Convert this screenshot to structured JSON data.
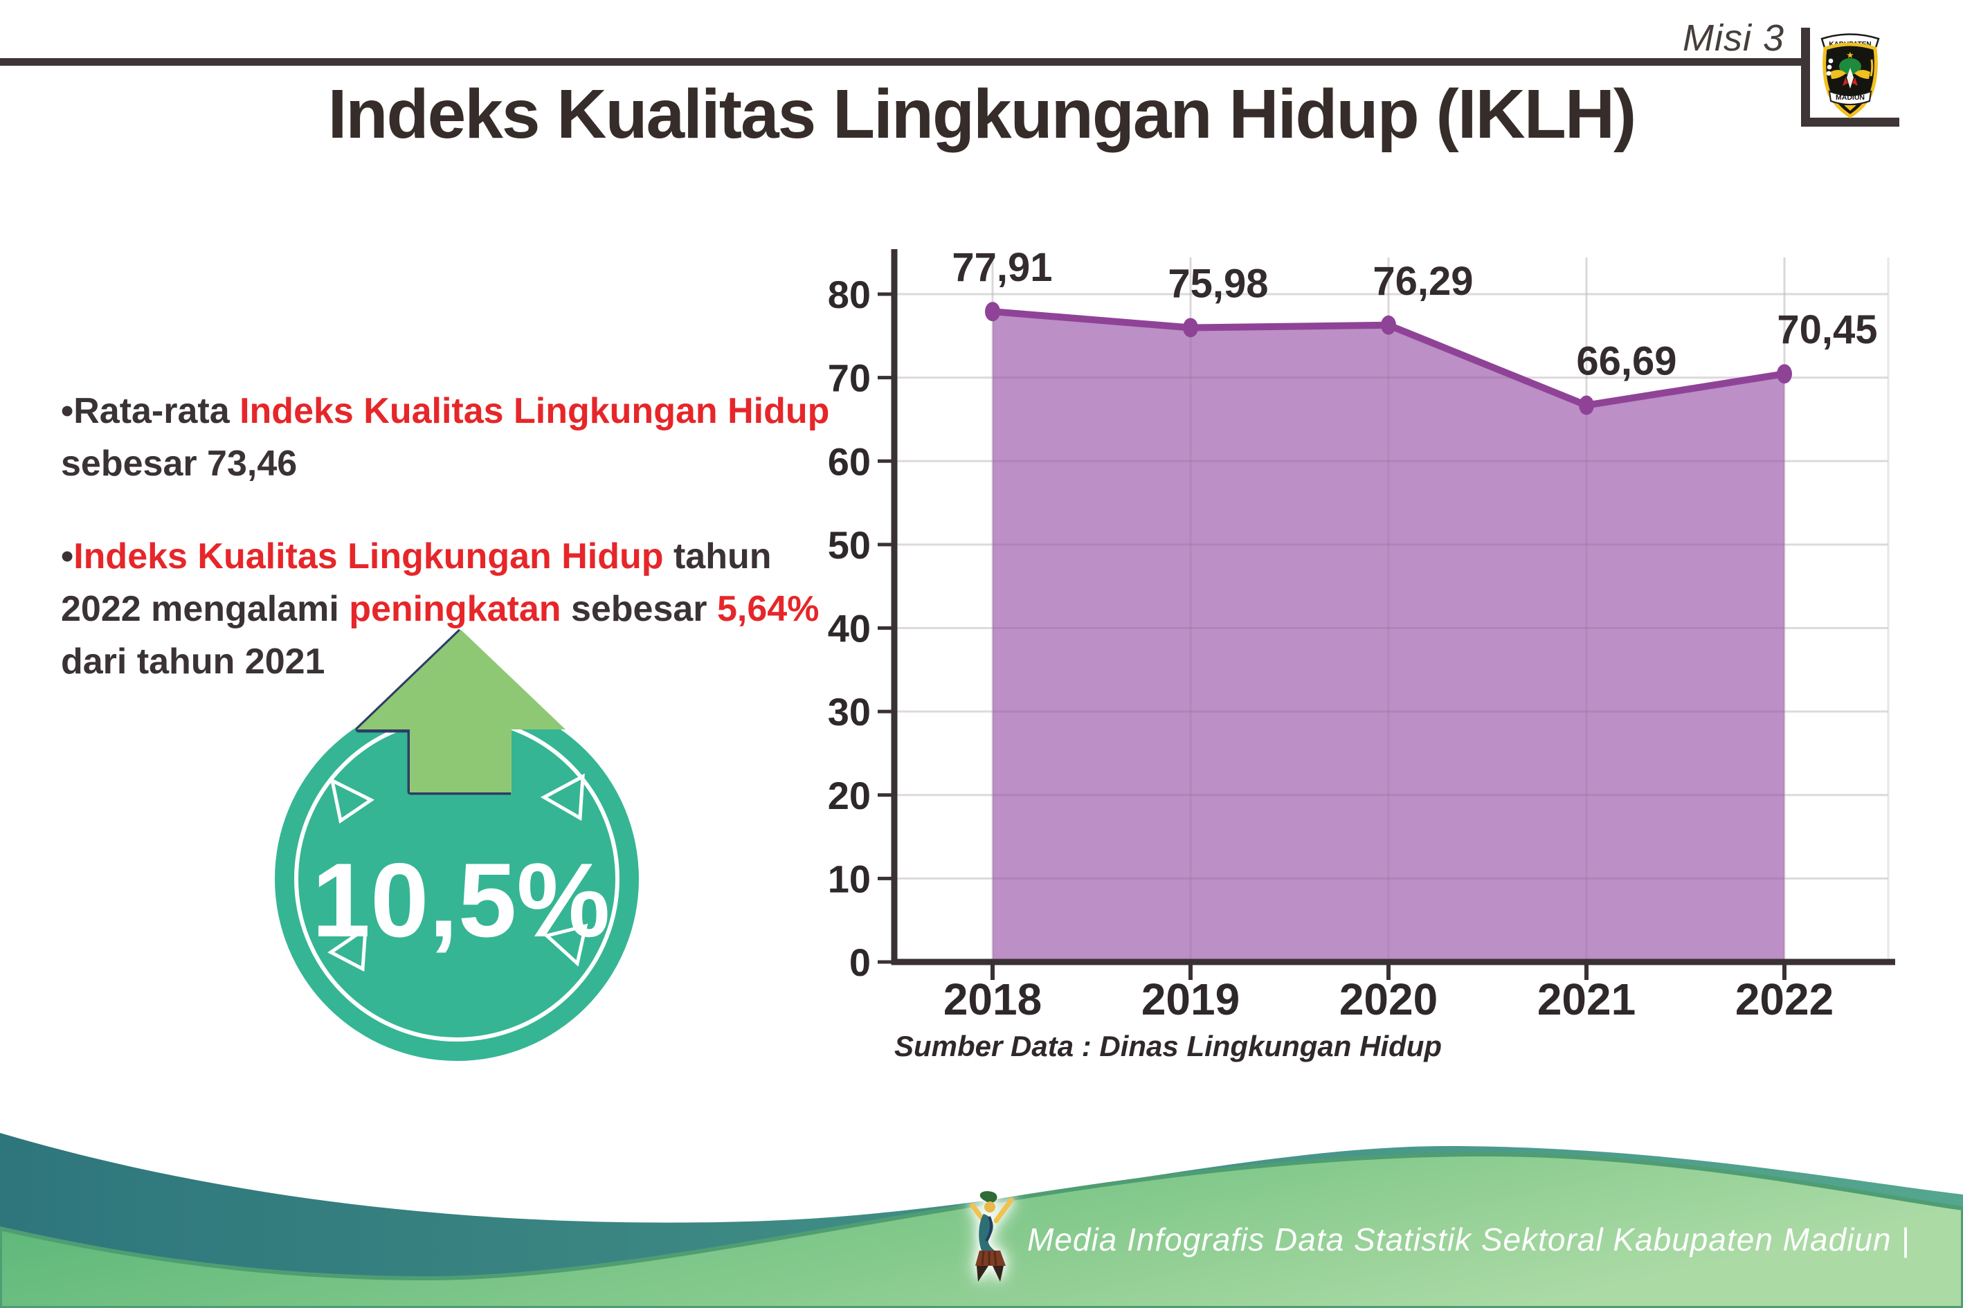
{
  "header": {
    "mission_label": "Misi 3",
    "title": "Indeks Kualitas Lingkungan Hidup (IKLH)",
    "logo": {
      "top_text": "KABUPATEN",
      "bottom_text": "MADIUN"
    }
  },
  "bullets": {
    "marker": "•",
    "b1": {
      "s1": "Rata-rata ",
      "s2": "Indeks Kualitas Lingkungan Hidup",
      "s3": " sebesar 73,46"
    },
    "b2": {
      "s1": "Indeks Kualitas Lingkungan Hidup",
      "s2": " tahun 2022 mengalami ",
      "s3": "peningkatan",
      "s4": " sebesar ",
      "s5": "5,64%",
      "s6": " dari tahun 2021"
    }
  },
  "badge": {
    "value": "10,5%"
  },
  "chart_data": {
    "type": "area",
    "categories": [
      "2018",
      "2019",
      "2020",
      "2021",
      "2022"
    ],
    "values": [
      77.91,
      75.98,
      76.29,
      66.69,
      70.45
    ],
    "point_labels": [
      "77,91",
      "75,98",
      "76,29",
      "66,69",
      "70,45"
    ],
    "title": "Indeks Kualitas Lingkungan Hidup (IKLH)",
    "xlabel": "",
    "ylabel": "",
    "ylim": [
      0,
      80
    ],
    "ytick_step": 10,
    "grid": true,
    "legend": "none",
    "line_color": "#8f4397",
    "fill_color": "#bc8fc6",
    "source_note": "Sumber Data : Dinas Lingkungan Hidup"
  },
  "footer": {
    "caption": "Media Infografis Data Statistik Sektoral Kabupaten Madiun |"
  },
  "colors": {
    "accent_red": "#e62629",
    "badge_teal": "#35b594",
    "arrow_green": "#8fc875",
    "wave_teal": "#2f7b7d",
    "wave_green": "#54b476"
  }
}
